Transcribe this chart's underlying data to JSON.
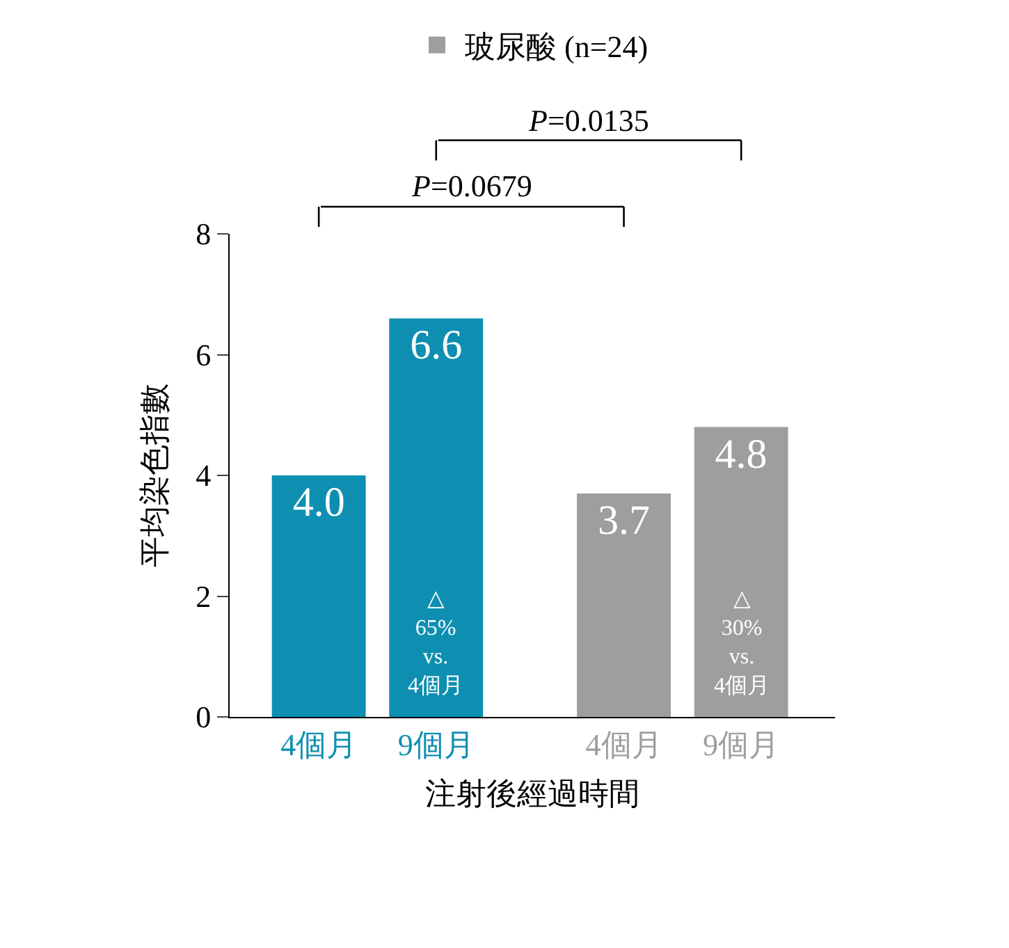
{
  "chart_data": {
    "type": "bar",
    "categories": [
      "4個月",
      "9個月",
      "4個月",
      "9個月"
    ],
    "series": [
      {
        "color": "#0e8fb1",
        "values": [
          4.0,
          6.6,
          null,
          null
        ],
        "value_labels": [
          "4.0",
          "6.6",
          null,
          null
        ]
      },
      {
        "name": "玻尿酸 (n=24)",
        "color": "#9e9e9e",
        "values": [
          null,
          null,
          3.7,
          4.8
        ],
        "value_labels": [
          null,
          null,
          "3.7",
          "4.8"
        ]
      }
    ],
    "xlabel": "注射後經過時間",
    "ylabel": "平均染色指數",
    "ylim": [
      0,
      8
    ],
    "yticks": [
      0,
      2,
      4,
      6,
      8
    ],
    "legend": "top",
    "annotations": [
      "P=0.0679",
      "P=0.0135",
      "△\n65%\nvs.\n4個月",
      "△\n30%\nvs.\n4個月"
    ]
  }
}
